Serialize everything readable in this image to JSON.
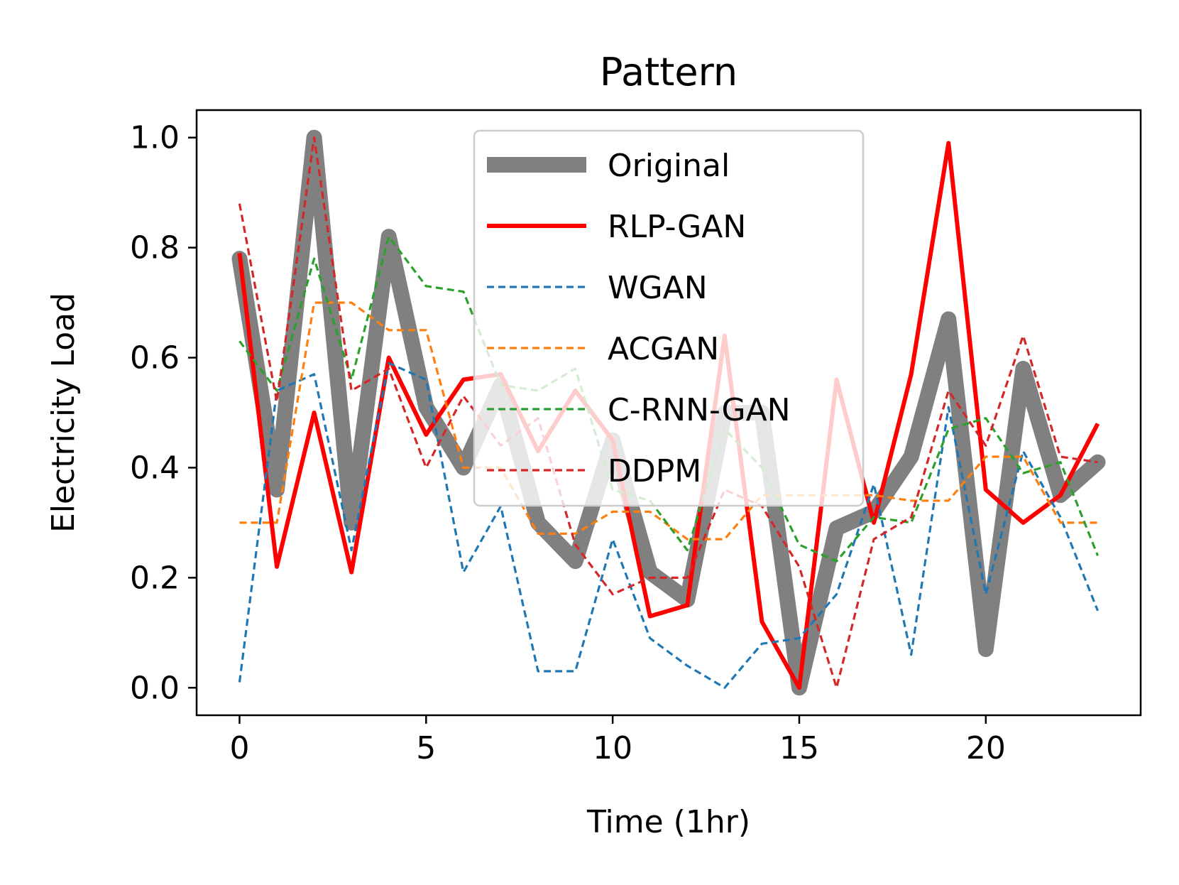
{
  "chart_data": {
    "type": "line",
    "title": "Pattern",
    "xlabel": "Time (1hr)",
    "ylabel": "Electricity Load",
    "xlim": [
      -1.15,
      24.15
    ],
    "ylim": [
      -0.05,
      1.05
    ],
    "xticks": [
      0,
      5,
      10,
      15,
      20
    ],
    "xtick_labels": [
      "0",
      "5",
      "10",
      "15",
      "20"
    ],
    "yticks": [
      0.0,
      0.2,
      0.4,
      0.6,
      0.8,
      1.0
    ],
    "ytick_labels": [
      "0.0",
      "0.2",
      "0.4",
      "0.6",
      "0.8",
      "1.0"
    ],
    "grid": false,
    "legend_position": "top-center",
    "x": [
      0,
      1,
      2,
      3,
      4,
      5,
      6,
      7,
      8,
      9,
      10,
      11,
      12,
      13,
      14,
      15,
      16,
      17,
      18,
      19,
      20,
      21,
      22,
      23
    ],
    "series": [
      {
        "name": "Original",
        "color": "#808080",
        "style": "solid-thick",
        "values": [
          0.78,
          0.36,
          1.0,
          0.3,
          0.82,
          0.51,
          0.4,
          0.55,
          0.3,
          0.23,
          0.45,
          0.21,
          0.16,
          0.5,
          0.5,
          0.0,
          0.29,
          0.32,
          0.42,
          0.67,
          0.07,
          0.58,
          0.35,
          0.41
        ]
      },
      {
        "name": "RLP-GAN",
        "color": "#ff0000",
        "style": "solid",
        "values": [
          0.79,
          0.22,
          0.5,
          0.21,
          0.6,
          0.46,
          0.56,
          0.57,
          0.43,
          0.54,
          0.45,
          0.13,
          0.15,
          0.64,
          0.12,
          0.0,
          0.56,
          0.3,
          0.57,
          0.99,
          0.36,
          0.3,
          0.35,
          0.48
        ]
      },
      {
        "name": "WGAN",
        "color": "#1f77b4",
        "style": "dashed",
        "values": [
          0.01,
          0.54,
          0.57,
          0.25,
          0.59,
          0.56,
          0.21,
          0.33,
          0.03,
          0.03,
          0.27,
          0.09,
          0.04,
          0.0,
          0.08,
          0.09,
          0.17,
          0.37,
          0.06,
          0.51,
          0.17,
          0.43,
          0.31,
          0.14
        ]
      },
      {
        "name": "ACGAN",
        "color": "#ff7f0e",
        "style": "dashed",
        "values": [
          0.3,
          0.3,
          0.7,
          0.7,
          0.65,
          0.65,
          0.4,
          0.4,
          0.28,
          0.28,
          0.32,
          0.32,
          0.27,
          0.27,
          0.35,
          0.35,
          0.35,
          0.35,
          0.34,
          0.34,
          0.42,
          0.42,
          0.3,
          0.3
        ]
      },
      {
        "name": "C-RNN-GAN",
        "color": "#2ca02c",
        "style": "dashed",
        "values": [
          0.63,
          0.54,
          0.78,
          0.56,
          0.82,
          0.73,
          0.72,
          0.55,
          0.54,
          0.58,
          0.36,
          0.34,
          0.25,
          0.47,
          0.4,
          0.26,
          0.23,
          0.31,
          0.3,
          0.47,
          0.49,
          0.39,
          0.41,
          0.24
        ]
      },
      {
        "name": "DDPM",
        "color": "#d62728",
        "style": "dashed",
        "values": [
          0.88,
          0.52,
          1.0,
          0.54,
          0.58,
          0.4,
          0.53,
          0.44,
          0.49,
          0.26,
          0.17,
          0.2,
          0.2,
          0.36,
          0.33,
          0.22,
          0.0,
          0.27,
          0.31,
          0.54,
          0.44,
          0.64,
          0.42,
          0.41
        ]
      }
    ]
  }
}
